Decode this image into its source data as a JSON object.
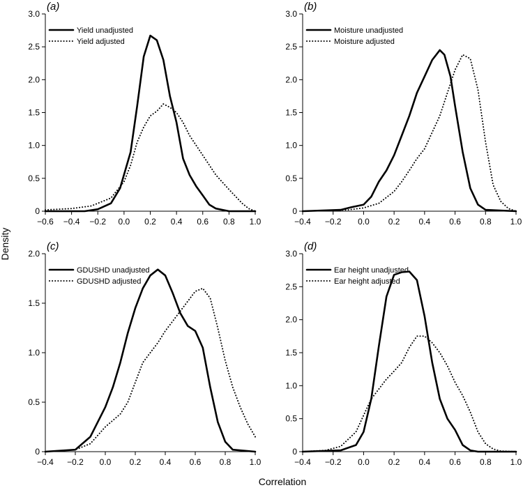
{
  "figure": {
    "ylabel": "Density",
    "xlabel": "Correlation"
  },
  "chart_data": [
    {
      "type": "line",
      "panel_label": "(a)",
      "xlim": [
        -0.6,
        1.0
      ],
      "ylim": [
        0,
        3.0
      ],
      "xticks": [
        -0.6,
        -0.4,
        -0.2,
        0.0,
        0.2,
        0.4,
        0.6,
        0.8,
        1.0
      ],
      "xtick_labels": [
        "−0.6",
        "−0.4",
        "−0.2",
        "0.0",
        "0.2",
        "0.4",
        "0.6",
        "0.8",
        "1.0"
      ],
      "yticks": [
        0,
        0.5,
        1.0,
        1.5,
        2.0,
        2.5,
        3.0
      ],
      "ytick_labels": [
        "0",
        "0.5",
        "1.0",
        "1.5",
        "2.0",
        "2.5",
        "3.0"
      ],
      "legend_position": "top-left",
      "series": [
        {
          "name": "Yield unadjusted",
          "style": "solid",
          "points": [
            [
              -0.6,
              0.0
            ],
            [
              -0.3,
              0.0
            ],
            [
              -0.2,
              0.03
            ],
            [
              -0.1,
              0.12
            ],
            [
              -0.03,
              0.35
            ],
            [
              0.05,
              0.9
            ],
            [
              0.1,
              1.6
            ],
            [
              0.15,
              2.35
            ],
            [
              0.2,
              2.67
            ],
            [
              0.25,
              2.6
            ],
            [
              0.3,
              2.3
            ],
            [
              0.35,
              1.75
            ],
            [
              0.4,
              1.35
            ],
            [
              0.45,
              0.8
            ],
            [
              0.5,
              0.55
            ],
            [
              0.55,
              0.38
            ],
            [
              0.6,
              0.24
            ],
            [
              0.65,
              0.1
            ],
            [
              0.7,
              0.04
            ],
            [
              0.8,
              0.0
            ],
            [
              1.0,
              0.0
            ]
          ]
        },
        {
          "name": "Yield adjusted",
          "style": "dotted",
          "points": [
            [
              -0.6,
              0.02
            ],
            [
              -0.4,
              0.04
            ],
            [
              -0.25,
              0.08
            ],
            [
              -0.1,
              0.2
            ],
            [
              0.0,
              0.45
            ],
            [
              0.05,
              0.7
            ],
            [
              0.1,
              1.05
            ],
            [
              0.15,
              1.28
            ],
            [
              0.2,
              1.45
            ],
            [
              0.25,
              1.52
            ],
            [
              0.3,
              1.63
            ],
            [
              0.35,
              1.58
            ],
            [
              0.4,
              1.5
            ],
            [
              0.45,
              1.35
            ],
            [
              0.5,
              1.15
            ],
            [
              0.6,
              0.85
            ],
            [
              0.7,
              0.55
            ],
            [
              0.8,
              0.33
            ],
            [
              0.9,
              0.12
            ],
            [
              0.95,
              0.04
            ],
            [
              1.0,
              0.0
            ]
          ]
        }
      ]
    },
    {
      "type": "line",
      "panel_label": "(b)",
      "xlim": [
        -0.4,
        1.0
      ],
      "ylim": [
        0,
        3.0
      ],
      "xticks": [
        -0.4,
        -0.2,
        0.0,
        0.2,
        0.4,
        0.6,
        0.8,
        1.0
      ],
      "xtick_labels": [
        "−0.4",
        "−0.2",
        "0.0",
        "0.2",
        "0.4",
        "0.6",
        "0.8",
        "1.0"
      ],
      "yticks": [
        0,
        0.5,
        1.0,
        1.5,
        2.0,
        2.5,
        3.0
      ],
      "ytick_labels": [
        "0",
        "0.5",
        "1.0",
        "1.5",
        "2.0",
        "2.5",
        "3.0"
      ],
      "legend_position": "top-left",
      "series": [
        {
          "name": "Moisture unadjusted",
          "style": "solid",
          "points": [
            [
              -0.4,
              0.0
            ],
            [
              -0.15,
              0.02
            ],
            [
              -0.08,
              0.06
            ],
            [
              0.0,
              0.1
            ],
            [
              0.05,
              0.22
            ],
            [
              0.1,
              0.45
            ],
            [
              0.15,
              0.62
            ],
            [
              0.2,
              0.85
            ],
            [
              0.25,
              1.15
            ],
            [
              0.3,
              1.45
            ],
            [
              0.35,
              1.8
            ],
            [
              0.4,
              2.05
            ],
            [
              0.45,
              2.3
            ],
            [
              0.5,
              2.45
            ],
            [
              0.53,
              2.38
            ],
            [
              0.57,
              2.05
            ],
            [
              0.6,
              1.6
            ],
            [
              0.65,
              0.9
            ],
            [
              0.7,
              0.35
            ],
            [
              0.75,
              0.1
            ],
            [
              0.8,
              0.02
            ],
            [
              1.0,
              0.0
            ]
          ]
        },
        {
          "name": "Moisture adjusted",
          "style": "dotted",
          "points": [
            [
              -0.4,
              0.0
            ],
            [
              -0.1,
              0.02
            ],
            [
              0.0,
              0.05
            ],
            [
              0.1,
              0.12
            ],
            [
              0.2,
              0.3
            ],
            [
              0.25,
              0.45
            ],
            [
              0.3,
              0.62
            ],
            [
              0.35,
              0.8
            ],
            [
              0.4,
              0.95
            ],
            [
              0.45,
              1.2
            ],
            [
              0.5,
              1.45
            ],
            [
              0.55,
              1.8
            ],
            [
              0.6,
              2.15
            ],
            [
              0.65,
              2.38
            ],
            [
              0.7,
              2.32
            ],
            [
              0.75,
              1.85
            ],
            [
              0.8,
              1.05
            ],
            [
              0.85,
              0.4
            ],
            [
              0.9,
              0.15
            ],
            [
              0.95,
              0.04
            ],
            [
              1.0,
              0.0
            ]
          ]
        }
      ]
    },
    {
      "type": "line",
      "panel_label": "(c)",
      "xlim": [
        -0.4,
        1.0
      ],
      "ylim": [
        0,
        2.0
      ],
      "xticks": [
        -0.4,
        -0.2,
        0.0,
        0.2,
        0.4,
        0.6,
        0.8,
        1.0
      ],
      "xtick_labels": [
        "−0.4",
        "−0.2",
        "0.0",
        "0.2",
        "0.4",
        "0.6",
        "0.8",
        "1.0"
      ],
      "yticks": [
        0,
        0.5,
        1.0,
        1.5,
        2.0
      ],
      "ytick_labels": [
        "0",
        "0.5",
        "1.0",
        "1.5",
        "2.0"
      ],
      "legend_position": "top-left",
      "series": [
        {
          "name": "GDUSHD unadjusted",
          "style": "solid",
          "points": [
            [
              -0.4,
              0.0
            ],
            [
              -0.2,
              0.02
            ],
            [
              -0.1,
              0.15
            ],
            [
              0.0,
              0.45
            ],
            [
              0.05,
              0.65
            ],
            [
              0.1,
              0.9
            ],
            [
              0.15,
              1.2
            ],
            [
              0.2,
              1.45
            ],
            [
              0.25,
              1.65
            ],
            [
              0.3,
              1.78
            ],
            [
              0.35,
              1.84
            ],
            [
              0.4,
              1.78
            ],
            [
              0.45,
              1.6
            ],
            [
              0.5,
              1.4
            ],
            [
              0.55,
              1.27
            ],
            [
              0.6,
              1.22
            ],
            [
              0.65,
              1.05
            ],
            [
              0.7,
              0.65
            ],
            [
              0.75,
              0.3
            ],
            [
              0.8,
              0.1
            ],
            [
              0.85,
              0.02
            ],
            [
              1.0,
              0.0
            ]
          ]
        },
        {
          "name": "GDUSHD adjusted",
          "style": "dotted",
          "points": [
            [
              -0.4,
              0.0
            ],
            [
              -0.2,
              0.02
            ],
            [
              -0.1,
              0.08
            ],
            [
              0.0,
              0.25
            ],
            [
              0.1,
              0.38
            ],
            [
              0.15,
              0.5
            ],
            [
              0.2,
              0.7
            ],
            [
              0.25,
              0.9
            ],
            [
              0.3,
              1.0
            ],
            [
              0.35,
              1.1
            ],
            [
              0.4,
              1.22
            ],
            [
              0.45,
              1.32
            ],
            [
              0.5,
              1.42
            ],
            [
              0.55,
              1.52
            ],
            [
              0.6,
              1.62
            ],
            [
              0.65,
              1.65
            ],
            [
              0.7,
              1.55
            ],
            [
              0.75,
              1.25
            ],
            [
              0.8,
              0.92
            ],
            [
              0.85,
              0.65
            ],
            [
              0.9,
              0.45
            ],
            [
              0.95,
              0.28
            ],
            [
              1.0,
              0.15
            ]
          ]
        }
      ]
    },
    {
      "type": "line",
      "panel_label": "(d)",
      "xlim": [
        -0.4,
        1.0
      ],
      "ylim": [
        0,
        3.0
      ],
      "xticks": [
        -0.4,
        -0.2,
        0.0,
        0.2,
        0.4,
        0.6,
        0.8,
        1.0
      ],
      "xtick_labels": [
        "−0.4",
        "−0.2",
        "0.0",
        "0.2",
        "0.4",
        "0.6",
        "0.8",
        "1.0"
      ],
      "yticks": [
        0,
        0.5,
        1.0,
        1.5,
        2.0,
        2.5,
        3.0
      ],
      "ytick_labels": [
        "0",
        "0.5",
        "1.0",
        "1.5",
        "2.0",
        "2.5",
        "3.0"
      ],
      "legend_position": "top-left",
      "series": [
        {
          "name": "Ear height unadjusted",
          "style": "solid",
          "points": [
            [
              -0.4,
              0.0
            ],
            [
              -0.15,
              0.02
            ],
            [
              -0.05,
              0.1
            ],
            [
              0.0,
              0.3
            ],
            [
              0.05,
              0.8
            ],
            [
              0.1,
              1.6
            ],
            [
              0.15,
              2.35
            ],
            [
              0.2,
              2.68
            ],
            [
              0.25,
              2.72
            ],
            [
              0.3,
              2.73
            ],
            [
              0.35,
              2.6
            ],
            [
              0.4,
              2.05
            ],
            [
              0.45,
              1.35
            ],
            [
              0.5,
              0.8
            ],
            [
              0.55,
              0.5
            ],
            [
              0.6,
              0.33
            ],
            [
              0.65,
              0.1
            ],
            [
              0.7,
              0.02
            ],
            [
              0.75,
              0.0
            ],
            [
              1.0,
              0.0
            ]
          ]
        },
        {
          "name": "Ear height adjusted",
          "style": "dotted",
          "points": [
            [
              -0.4,
              0.0
            ],
            [
              -0.25,
              0.02
            ],
            [
              -0.15,
              0.08
            ],
            [
              -0.05,
              0.3
            ],
            [
              0.0,
              0.55
            ],
            [
              0.05,
              0.8
            ],
            [
              0.1,
              0.95
            ],
            [
              0.15,
              1.1
            ],
            [
              0.2,
              1.22
            ],
            [
              0.25,
              1.35
            ],
            [
              0.3,
              1.58
            ],
            [
              0.35,
              1.75
            ],
            [
              0.4,
              1.75
            ],
            [
              0.45,
              1.65
            ],
            [
              0.5,
              1.5
            ],
            [
              0.55,
              1.3
            ],
            [
              0.6,
              1.05
            ],
            [
              0.65,
              0.85
            ],
            [
              0.7,
              0.6
            ],
            [
              0.75,
              0.3
            ],
            [
              0.8,
              0.12
            ],
            [
              0.85,
              0.04
            ],
            [
              0.9,
              0.01
            ],
            [
              1.0,
              0.0
            ]
          ]
        }
      ]
    }
  ]
}
